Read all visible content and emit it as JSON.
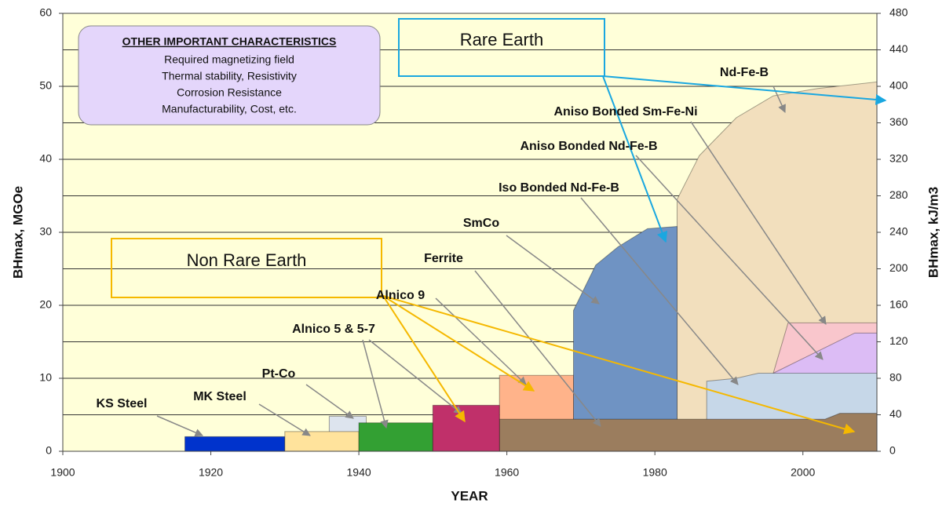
{
  "chart_data": {
    "type": "area",
    "xlabel": "YEAR",
    "ylabel": "BHmax, MGOe",
    "y2label": "BHmax, kJ/m3",
    "xlim": [
      1900,
      2010
    ],
    "xticks": [
      1900,
      1920,
      1940,
      1960,
      1980,
      2000
    ],
    "ylim": [
      0,
      60
    ],
    "yticks": [
      0,
      10,
      20,
      30,
      40,
      50,
      60
    ],
    "y2lim": [
      0,
      480
    ],
    "y2ticks": [
      0,
      40,
      80,
      120,
      160,
      200,
      240,
      280,
      320,
      360,
      400,
      440,
      480
    ],
    "grid": true,
    "background": "#ffffd9",
    "annotations": {
      "box_title": "OTHER IMPORTANT CHARACTERISTICS",
      "box_lines": [
        "Required magnetizing field",
        "Thermal stability, Resistivity",
        "Corrosion Resistance",
        "Manufacturability, Cost, etc."
      ],
      "rare_earth": "Rare Earth",
      "non_rare_earth": "Non Rare Earth"
    },
    "series": [
      {
        "name": "Nd-Fe-B",
        "color": "#f2dfbd",
        "x": [
          1983,
          1983,
          1986,
          1991,
          1996,
          2002,
          2010
        ],
        "values": [
          0,
          34.5,
          40.5,
          45.7,
          48.7,
          49.7,
          50.6
        ]
      },
      {
        "name": "SmCo",
        "color": "#6f93c3",
        "x": [
          1969,
          1969,
          1972,
          1975,
          1979,
          1983,
          1983
        ],
        "values": [
          0,
          19.3,
          25.5,
          28,
          30.5,
          30.8,
          0
        ]
      },
      {
        "name": "Aniso Bonded Sm-Fe-Ni",
        "color": "#f9c6cc",
        "x": [
          1996,
          1998,
          2010
        ],
        "values": [
          10.7,
          17.6,
          17.6
        ]
      },
      {
        "name": "Aniso Bonded Nd-Fe-B",
        "color": "#dcbcf5",
        "x": [
          1996,
          2007,
          2010
        ],
        "values": [
          10.7,
          16.2,
          16.2
        ]
      },
      {
        "name": "Iso Bonded Nd-Fe-B",
        "color": "#c6d7e8",
        "x": [
          1987,
          1987,
          1991,
          1994,
          2010
        ],
        "values": [
          0,
          9.6,
          10,
          10.7,
          10.7
        ]
      },
      {
        "name": "Alnico 9",
        "color": "#ffb38a",
        "x": [
          1959,
          1959,
          1969,
          1969
        ],
        "values": [
          0,
          10.4,
          10.4,
          0
        ]
      },
      {
        "name": "Pt-Co",
        "color": "#dde4ee",
        "x": [
          1936,
          1936,
          1941,
          1941
        ],
        "values": [
          0,
          4.8,
          4.8,
          0
        ]
      },
      {
        "name": "Ferrite",
        "color": "#9b7d5e",
        "x": [
          1959,
          1959,
          2003,
          2005,
          2010
        ],
        "values": [
          0,
          4.4,
          4.4,
          5.2,
          5.2
        ]
      },
      {
        "name": "KS Steel",
        "color": "#0033cc",
        "x": [
          1916.5,
          1916.5,
          1930,
          1930
        ],
        "values": [
          0,
          2,
          2,
          0
        ]
      },
      {
        "name": "MK Steel",
        "color": "#ffe39c",
        "x": [
          1930,
          1930,
          1940,
          1940
        ],
        "values": [
          0,
          2.7,
          2.7,
          0
        ]
      },
      {
        "name": "Alnico 5 & 5-7",
        "color": "#33a033",
        "x": [
          1940,
          1940,
          1950,
          1950
        ],
        "values": [
          0,
          3.9,
          3.9,
          0
        ]
      },
      {
        "name": "Alnico",
        "color": "#c0306a",
        "x": [
          1950,
          1950,
          1959,
          1959
        ],
        "values": [
          0,
          6.3,
          6.3,
          0
        ]
      }
    ]
  }
}
